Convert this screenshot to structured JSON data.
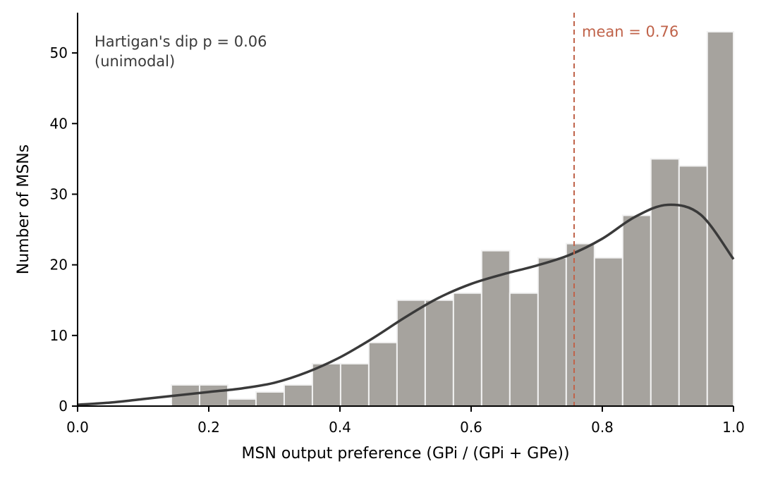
{
  "chart_data": {
    "type": "bar",
    "subtype": "histogram_with_density",
    "xlabel": "MSN output preference (GPi / (GPi + GPe))",
    "ylabel": "Number of MSNs",
    "xlim": [
      0.0,
      1.0
    ],
    "ylim": [
      0,
      55.7
    ],
    "x_ticks": [
      0.0,
      0.2,
      0.4,
      0.6,
      0.8,
      1.0
    ],
    "x_tick_labels": [
      "0.0",
      "0.2",
      "0.4",
      "0.6",
      "0.8",
      "1.0"
    ],
    "y_ticks": [
      0,
      10,
      20,
      30,
      40,
      50
    ],
    "y_tick_labels": [
      "0",
      "10",
      "20",
      "30",
      "40",
      "50"
    ],
    "bin_width": 0.043,
    "bins": [
      {
        "x0": 0.143,
        "x1": 0.186,
        "count": 3
      },
      {
        "x0": 0.186,
        "x1": 0.229,
        "count": 3
      },
      {
        "x0": 0.229,
        "x1": 0.272,
        "count": 1
      },
      {
        "x0": 0.272,
        "x1": 0.315,
        "count": 2
      },
      {
        "x0": 0.315,
        "x1": 0.358,
        "count": 3
      },
      {
        "x0": 0.358,
        "x1": 0.401,
        "count": 6
      },
      {
        "x0": 0.401,
        "x1": 0.444,
        "count": 6
      },
      {
        "x0": 0.444,
        "x1": 0.487,
        "count": 9
      },
      {
        "x0": 0.487,
        "x1": 0.53,
        "count": 15
      },
      {
        "x0": 0.53,
        "x1": 0.573,
        "count": 15
      },
      {
        "x0": 0.573,
        "x1": 0.616,
        "count": 16
      },
      {
        "x0": 0.616,
        "x1": 0.659,
        "count": 22
      },
      {
        "x0": 0.659,
        "x1": 0.702,
        "count": 16
      },
      {
        "x0": 0.702,
        "x1": 0.745,
        "count": 21
      },
      {
        "x0": 0.745,
        "x1": 0.788,
        "count": 23
      },
      {
        "x0": 0.788,
        "x1": 0.831,
        "count": 21
      },
      {
        "x0": 0.831,
        "x1": 0.874,
        "count": 27
      },
      {
        "x0": 0.874,
        "x1": 0.917,
        "count": 35
      },
      {
        "x0": 0.917,
        "x1": 0.96,
        "count": 34
      },
      {
        "x0": 0.96,
        "x1": 1.0,
        "count": 53
      }
    ],
    "density_curve": {
      "x": [
        0.0,
        0.05,
        0.1,
        0.15,
        0.2,
        0.25,
        0.3,
        0.35,
        0.4,
        0.45,
        0.5,
        0.55,
        0.6,
        0.65,
        0.7,
        0.75,
        0.8,
        0.85,
        0.9,
        0.95,
        1.0
      ],
      "y": [
        0.2,
        0.5,
        1.0,
        1.5,
        2.0,
        2.5,
        3.3,
        4.8,
        6.9,
        9.6,
        12.6,
        15.3,
        17.3,
        18.7,
        19.9,
        21.4,
        23.7,
        26.8,
        28.5,
        27.1,
        20.8
      ],
      "color": "#3a3a3a"
    },
    "mean_line": {
      "x": 0.757,
      "label": "mean = 0.76",
      "color": "#c0634a",
      "style": "dashed"
    },
    "annotation": {
      "lines": [
        "Hartigan's dip p = 0.06",
        "(unimodal)"
      ],
      "color": "#3a3a3a"
    },
    "bar_color": "#a6a39e",
    "bar_edge_color": "#f2f2f2",
    "grid": false,
    "spines": [
      "left",
      "bottom"
    ]
  }
}
